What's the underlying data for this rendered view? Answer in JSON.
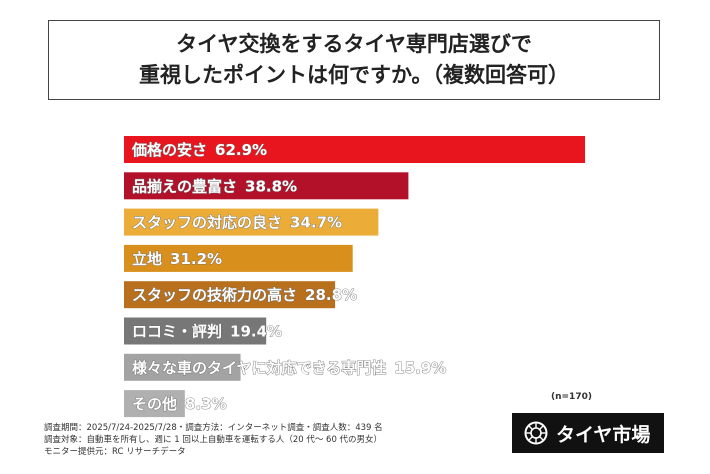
{
  "title": {
    "line1": "タイヤ交換をするタイヤ専門店選びで",
    "line2": "重視したポイントは何ですか。（複数回答可）"
  },
  "chart_data": {
    "type": "bar",
    "orientation": "horizontal",
    "categories": [
      "価格の安さ",
      "品揃えの豊富さ",
      "スタッフの対応の良さ",
      "立地",
      "スタッフの技術力の高さ",
      "ロコミ・評判",
      "様々な車のタイヤに対応できる専門性",
      "その他"
    ],
    "values": [
      62.9,
      38.8,
      34.7,
      31.2,
      28.8,
      19.4,
      15.9,
      8.3
    ],
    "value_labels": [
      "62.9%",
      "38.8%",
      "34.7%",
      "31.2%",
      "28.8%",
      "19.4%",
      "15.9%",
      "8.3%"
    ],
    "colors": [
      "#e8141e",
      "#b3102a",
      "#ecac38",
      "#d88f1b",
      "#b8701c",
      "#777777",
      "#a3a3a3",
      "#b0b0b0"
    ],
    "xlim": [
      0,
      100
    ],
    "grid": false,
    "sample_size": "(n=170)"
  },
  "footnotes": [
    "調査期間：2025/7/24-2025/7/28・調査方法：インターネット調査・調査人数：439 名",
    "調査対象：自動車を所有し、週に 1 回以上自動車を運転する人（20 代～ 60 代の男女）",
    "モニター提供元：RC リサーチデータ"
  ],
  "logo": {
    "text": "タイヤ市場",
    "icon": "tire-icon"
  }
}
